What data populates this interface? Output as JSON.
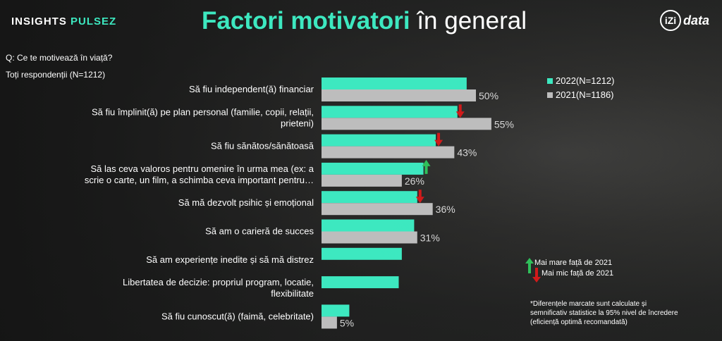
{
  "brand": {
    "part1": "INSIGHTS",
    "part2": "PULSEZ"
  },
  "title": {
    "accent": "Factori motivatori",
    "rest": " în general"
  },
  "logo": {
    "mark": "iZi",
    "text": "data"
  },
  "question": {
    "q": "Q: Ce te motivează în viață?",
    "base": "Toți respondenții (N=1212)"
  },
  "legend": {
    "s2022": "2022(N=1212)",
    "s2021": "2021(N=1186)"
  },
  "significance": {
    "up": "Mai mare față de 2021",
    "down": "Mai mic față de 2021"
  },
  "note": "*Diferențele marcate sunt calculate și semnificativ statistice la 95% nivel de încredere (eficiență optimă recomandată)",
  "colors": {
    "s2022": "#3de8c0",
    "s2021": "#bdbdbd",
    "up": "#2fbf5a",
    "down": "#d11a1a"
  },
  "chart_data": {
    "type": "bar",
    "orientation": "horizontal",
    "categories": [
      [
        "Să fiu independent(ă) financiar"
      ],
      [
        "Să fiu împlinit(ă) pe plan personal (familie, copii, relații,",
        "prieteni)"
      ],
      [
        "Să fiu sănătos/sănătoasă"
      ],
      [
        "Să las ceva valoros pentru omenire în urma mea (ex: a",
        "scrie o carte, un film, a schimba ceva important pentru…"
      ],
      [
        "Să mă dezvolt psihic și emoțional"
      ],
      [
        "Să am o carieră de succes"
      ],
      [
        "Să am experiențe inedite și să mă distrez"
      ],
      [
        "Libertatea de decizie: propriul program, locatie,",
        "flexibilitate"
      ],
      [
        "Să fiu cunoscut(ă) (faimă, celebritate)"
      ]
    ],
    "series": [
      {
        "name": "2022(N=1212)",
        "values": [
          47,
          44,
          37,
          33,
          31,
          30,
          26,
          25,
          9
        ]
      },
      {
        "name": "2021(N=1186)",
        "values": [
          50,
          55,
          43,
          26,
          36,
          31,
          null,
          null,
          5
        ]
      }
    ],
    "significance_2022": [
      "",
      "down",
      "down",
      "up",
      "down",
      "",
      "",
      "",
      ""
    ],
    "unit": "%"
  }
}
